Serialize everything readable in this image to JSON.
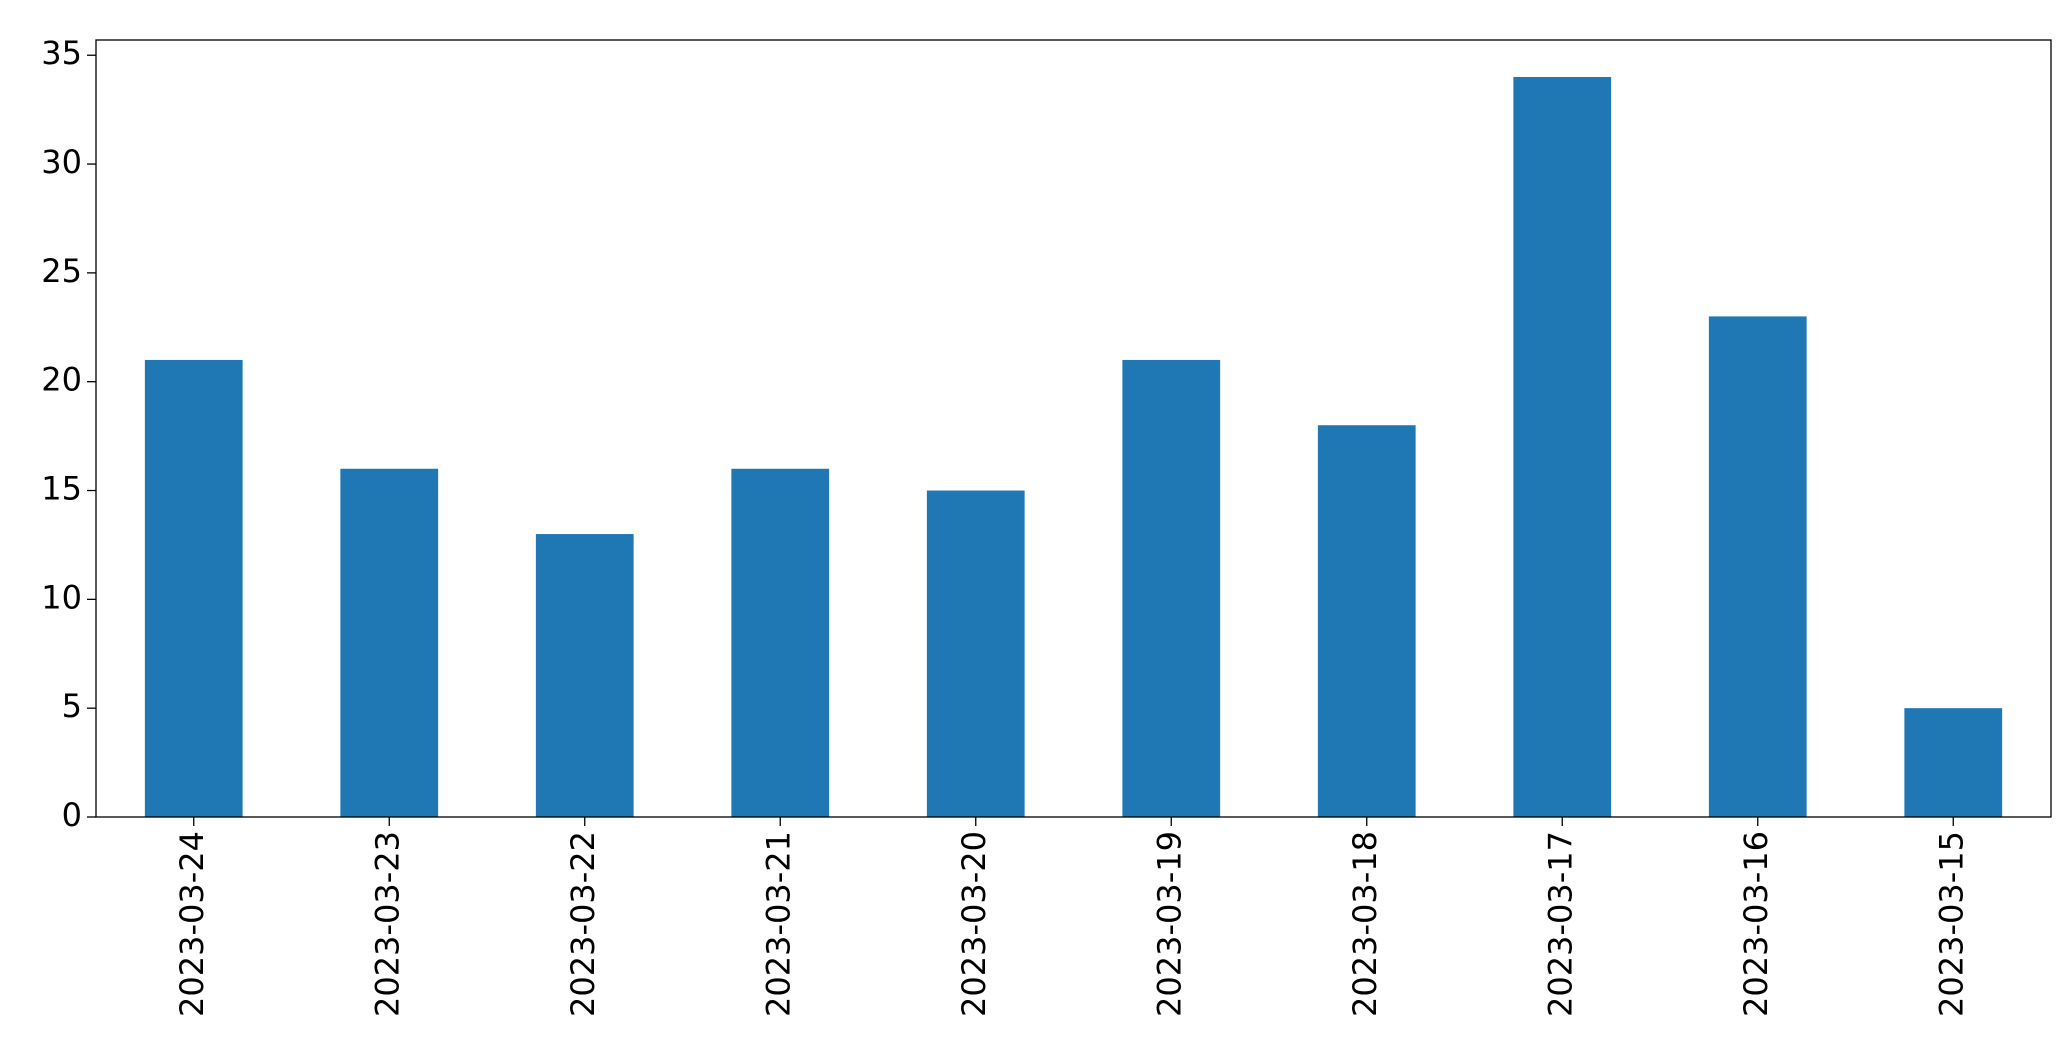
{
  "chart_data": {
    "type": "bar",
    "categories": [
      "2023-03-24",
      "2023-03-23",
      "2023-03-22",
      "2023-03-21",
      "2023-03-20",
      "2023-03-19",
      "2023-03-18",
      "2023-03-17",
      "2023-03-16",
      "2023-03-15"
    ],
    "values": [
      21,
      16,
      13,
      16,
      15,
      21,
      18,
      34,
      23,
      5
    ],
    "color": "#1f77b4",
    "ylim": [
      0,
      35.7
    ],
    "yticks": [
      0,
      5,
      10,
      15,
      20,
      25,
      30,
      35
    ],
    "grid": false
  }
}
